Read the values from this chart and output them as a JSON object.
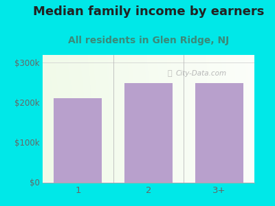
{
  "title": "Median family income by earners",
  "subtitle": "All residents in Glen Ridge, NJ",
  "categories": [
    "1",
    "2",
    "3+"
  ],
  "values": [
    210000,
    248000,
    249000
  ],
  "bar_color": "#b8a0cc",
  "background_color": "#00e8e8",
  "title_fontsize": 13,
  "subtitle_fontsize": 10,
  "ylabel_ticks": [
    0,
    100000,
    200000,
    300000
  ],
  "ylabel_labels": [
    "$0",
    "$100k",
    "$200k",
    "$300k"
  ],
  "ylim": [
    0,
    320000
  ],
  "title_color": "#222222",
  "subtitle_color": "#3a8a7a",
  "tick_color": "#666666",
  "watermark": "City-Data.com",
  "gradient_left": "#f0fae8",
  "gradient_right": "#ffffff"
}
